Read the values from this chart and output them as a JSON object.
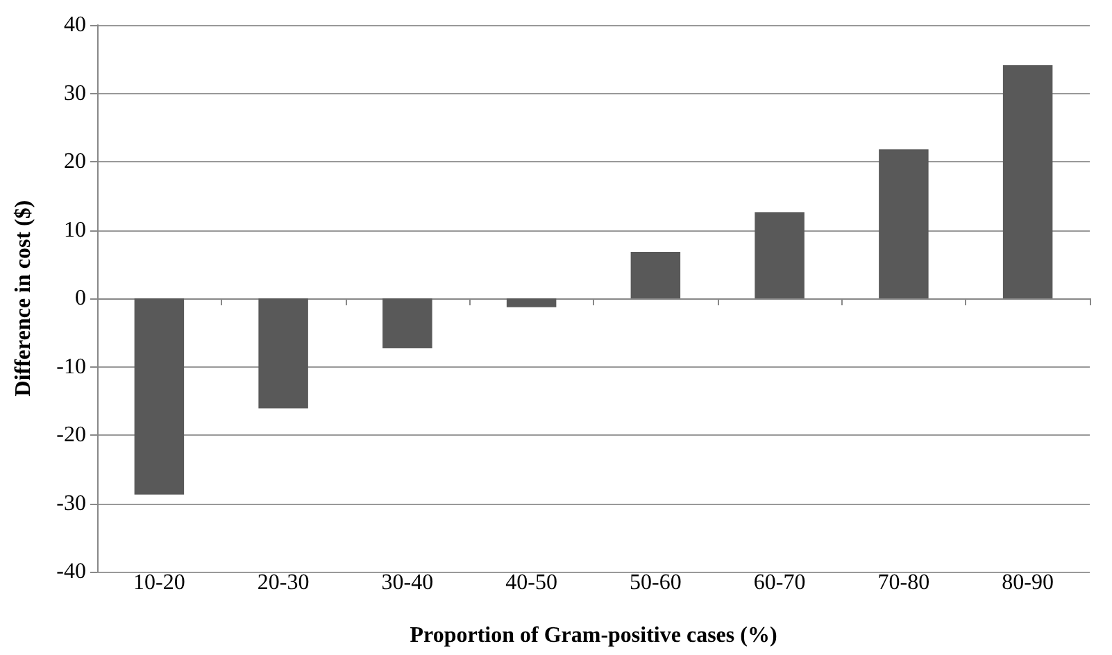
{
  "chart_data": {
    "type": "bar",
    "xlabel": "Proportion of Gram-positive cases (%)",
    "ylabel": "Difference in cost ($)",
    "categories": [
      "10-20",
      "20-30",
      "30-40",
      "40-50",
      "50-60",
      "60-70",
      "70-80",
      "80-90"
    ],
    "values": [
      -28.7,
      -16.1,
      -7.3,
      -1.3,
      6.8,
      12.6,
      21.8,
      34.1
    ],
    "color": "#595959",
    "ylim": [
      -40,
      40
    ],
    "yticks": [
      -40,
      -30,
      -20,
      -10,
      0,
      10,
      20,
      30,
      40
    ],
    "grid": "y"
  }
}
